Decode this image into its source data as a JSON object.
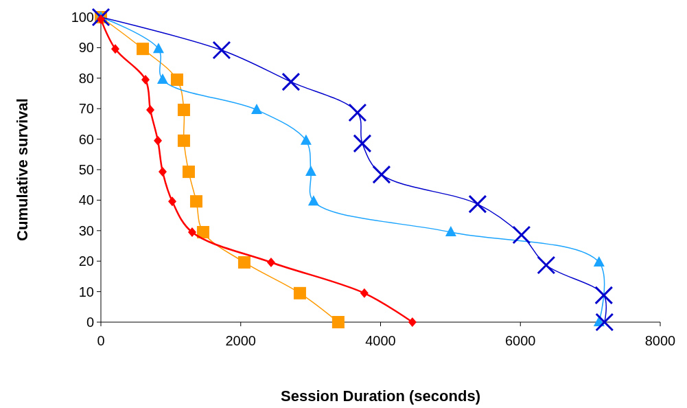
{
  "chart_data": {
    "type": "line",
    "xlabel": "Session Duration (seconds)",
    "ylabel": "Cumulative survival",
    "xlim": [
      0,
      8000
    ],
    "xticks": [
      0,
      2000,
      4000,
      6000,
      8000
    ],
    "ylim": [
      0,
      100
    ],
    "yticks": [
      0,
      10,
      20,
      30,
      40,
      50,
      60,
      70,
      80,
      90,
      100
    ],
    "grid": false,
    "line_style": "solid",
    "series": [
      {
        "color": "#0000cc",
        "marker": "cross",
        "x": [
          0,
          1727,
          2718,
          3670,
          3739,
          4014,
          5388,
          6016,
          6369,
          7193,
          7203
        ],
        "values": [
          100,
          89.2,
          78.8,
          68.7,
          58.6,
          48.4,
          38.7,
          28.6,
          18.7,
          8.8,
          0
        ]
      },
      {
        "color": "#1aa3ff",
        "marker": "triangle",
        "x": [
          0,
          824,
          883,
          2228,
          2934,
          3003,
          3042,
          5005,
          7125,
          7125
        ],
        "values": [
          100,
          89.6,
          79.5,
          69.6,
          59.5,
          49.3,
          39.6,
          29.5,
          19.6,
          0
        ]
      },
      {
        "color": "#ff9900",
        "marker": "square",
        "x": [
          0,
          599,
          1089,
          1187,
          1187,
          1256,
          1364,
          1462,
          2051,
          2846,
          3395
        ],
        "values": [
          100,
          89.6,
          79.5,
          69.6,
          59.5,
          49.3,
          39.6,
          29.5,
          19.6,
          9.5,
          0
        ]
      },
      {
        "color": "#ff0000",
        "marker": "diamond",
        "x": [
          0,
          206,
          638,
          707,
          815,
          883,
          1021,
          1305,
          2434,
          3768,
          4455
        ],
        "values": [
          99.3,
          89.6,
          79.5,
          69.6,
          59.5,
          49.3,
          39.6,
          29.5,
          19.6,
          9.5,
          0
        ]
      }
    ]
  }
}
